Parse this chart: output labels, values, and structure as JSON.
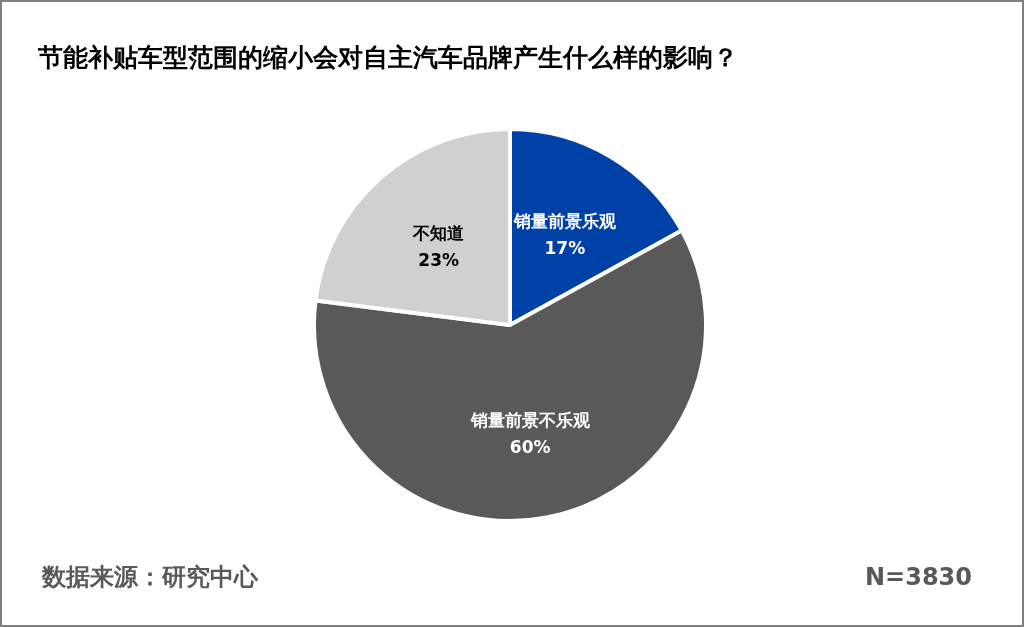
{
  "chart_data": {
    "type": "pie",
    "title": "节能补贴车型范围的缩小会对自主汽车品牌产生什么样的影响？",
    "categories": [
      "销量前景乐观",
      "销量前景不乐观",
      "不知道"
    ],
    "values": [
      17,
      60,
      23
    ],
    "colors": [
      "#0041a8",
      "#595959",
      "#d0d0d0"
    ],
    "value_labels": [
      "17%",
      "60%",
      "23%"
    ],
    "legend": false,
    "annotations": [
      "数据来源：研究中心",
      "N=3830"
    ]
  }
}
